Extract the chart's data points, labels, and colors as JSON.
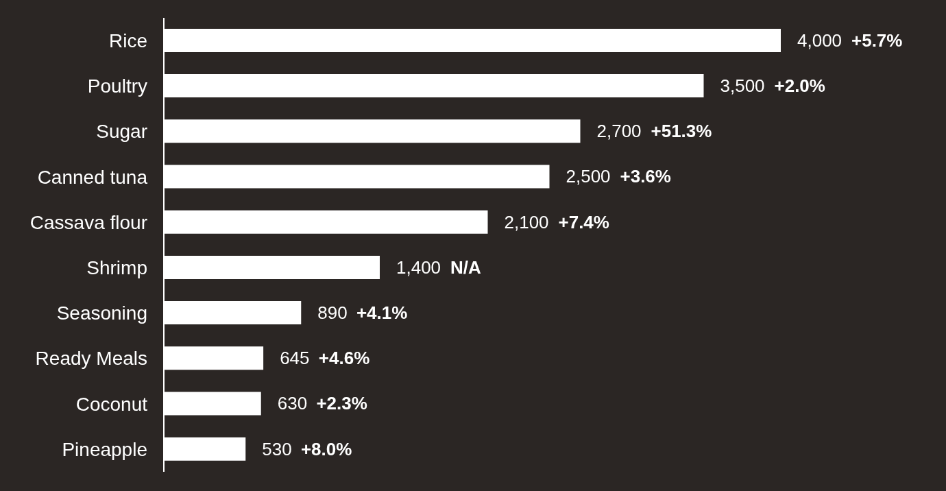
{
  "chart_data": {
    "type": "bar",
    "orientation": "horizontal",
    "categories": [
      "Rice",
      "Poultry",
      "Sugar",
      "Canned tuna",
      "Cassava flour",
      "Shrimp",
      "Seasoning",
      "Ready Meals",
      "Coconut",
      "Pineapple"
    ],
    "values": [
      4000,
      3500,
      2700,
      2500,
      2100,
      1400,
      890,
      645,
      630,
      530
    ],
    "value_labels": [
      "4,000",
      "3,500",
      "2,700",
      "2,500",
      "2,100",
      "1,400",
      "890",
      "645",
      "630",
      "530"
    ],
    "color": "#ffffff",
    "annotations": [
      "+5.7%",
      "+2.0%",
      "+51.3%",
      "+3.6%",
      "+7.4%",
      "N/A",
      "+4.1%",
      "+4.6%",
      "+2.3%",
      "+8.0%"
    ],
    "grid": false,
    "legend": false
  }
}
